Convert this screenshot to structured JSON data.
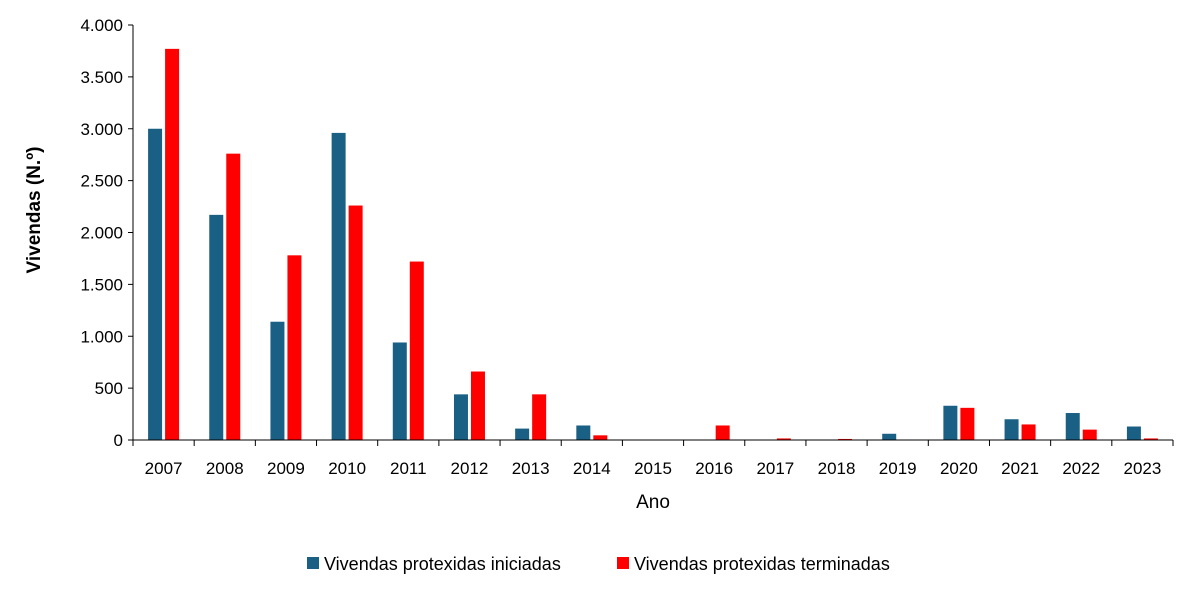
{
  "chart_data": {
    "type": "bar",
    "title": "",
    "xlabel": "Ano",
    "ylabel": "Vivendas (N.º)",
    "ylim": [
      0,
      4000
    ],
    "yticks": [
      0,
      500,
      1000,
      1500,
      2000,
      2500,
      3000,
      3500,
      4000
    ],
    "ytick_labels": [
      "0",
      "500",
      "1.000",
      "1.500",
      "2.000",
      "2.500",
      "3.000",
      "3.500",
      "4.000"
    ],
    "grid": false,
    "legend_position": "bottom",
    "categories": [
      "2007",
      "2008",
      "2009",
      "2010",
      "2011",
      "2012",
      "2013",
      "2014",
      "2015",
      "2016",
      "2017",
      "2018",
      "2019",
      "2020",
      "2021",
      "2022",
      "2023"
    ],
    "series": [
      {
        "name": "Vivendas protexidas iniciadas",
        "color": "#1a6085",
        "values": [
          3000,
          2170,
          1140,
          2960,
          940,
          440,
          110,
          140,
          0,
          0,
          0,
          0,
          60,
          330,
          200,
          260,
          130
        ]
      },
      {
        "name": "Vivendas protexidas terminadas",
        "color": "#ff0000",
        "values": [
          3770,
          2760,
          1780,
          2260,
          1720,
          660,
          440,
          45,
          0,
          140,
          15,
          10,
          0,
          310,
          150,
          100,
          15
        ]
      }
    ]
  }
}
